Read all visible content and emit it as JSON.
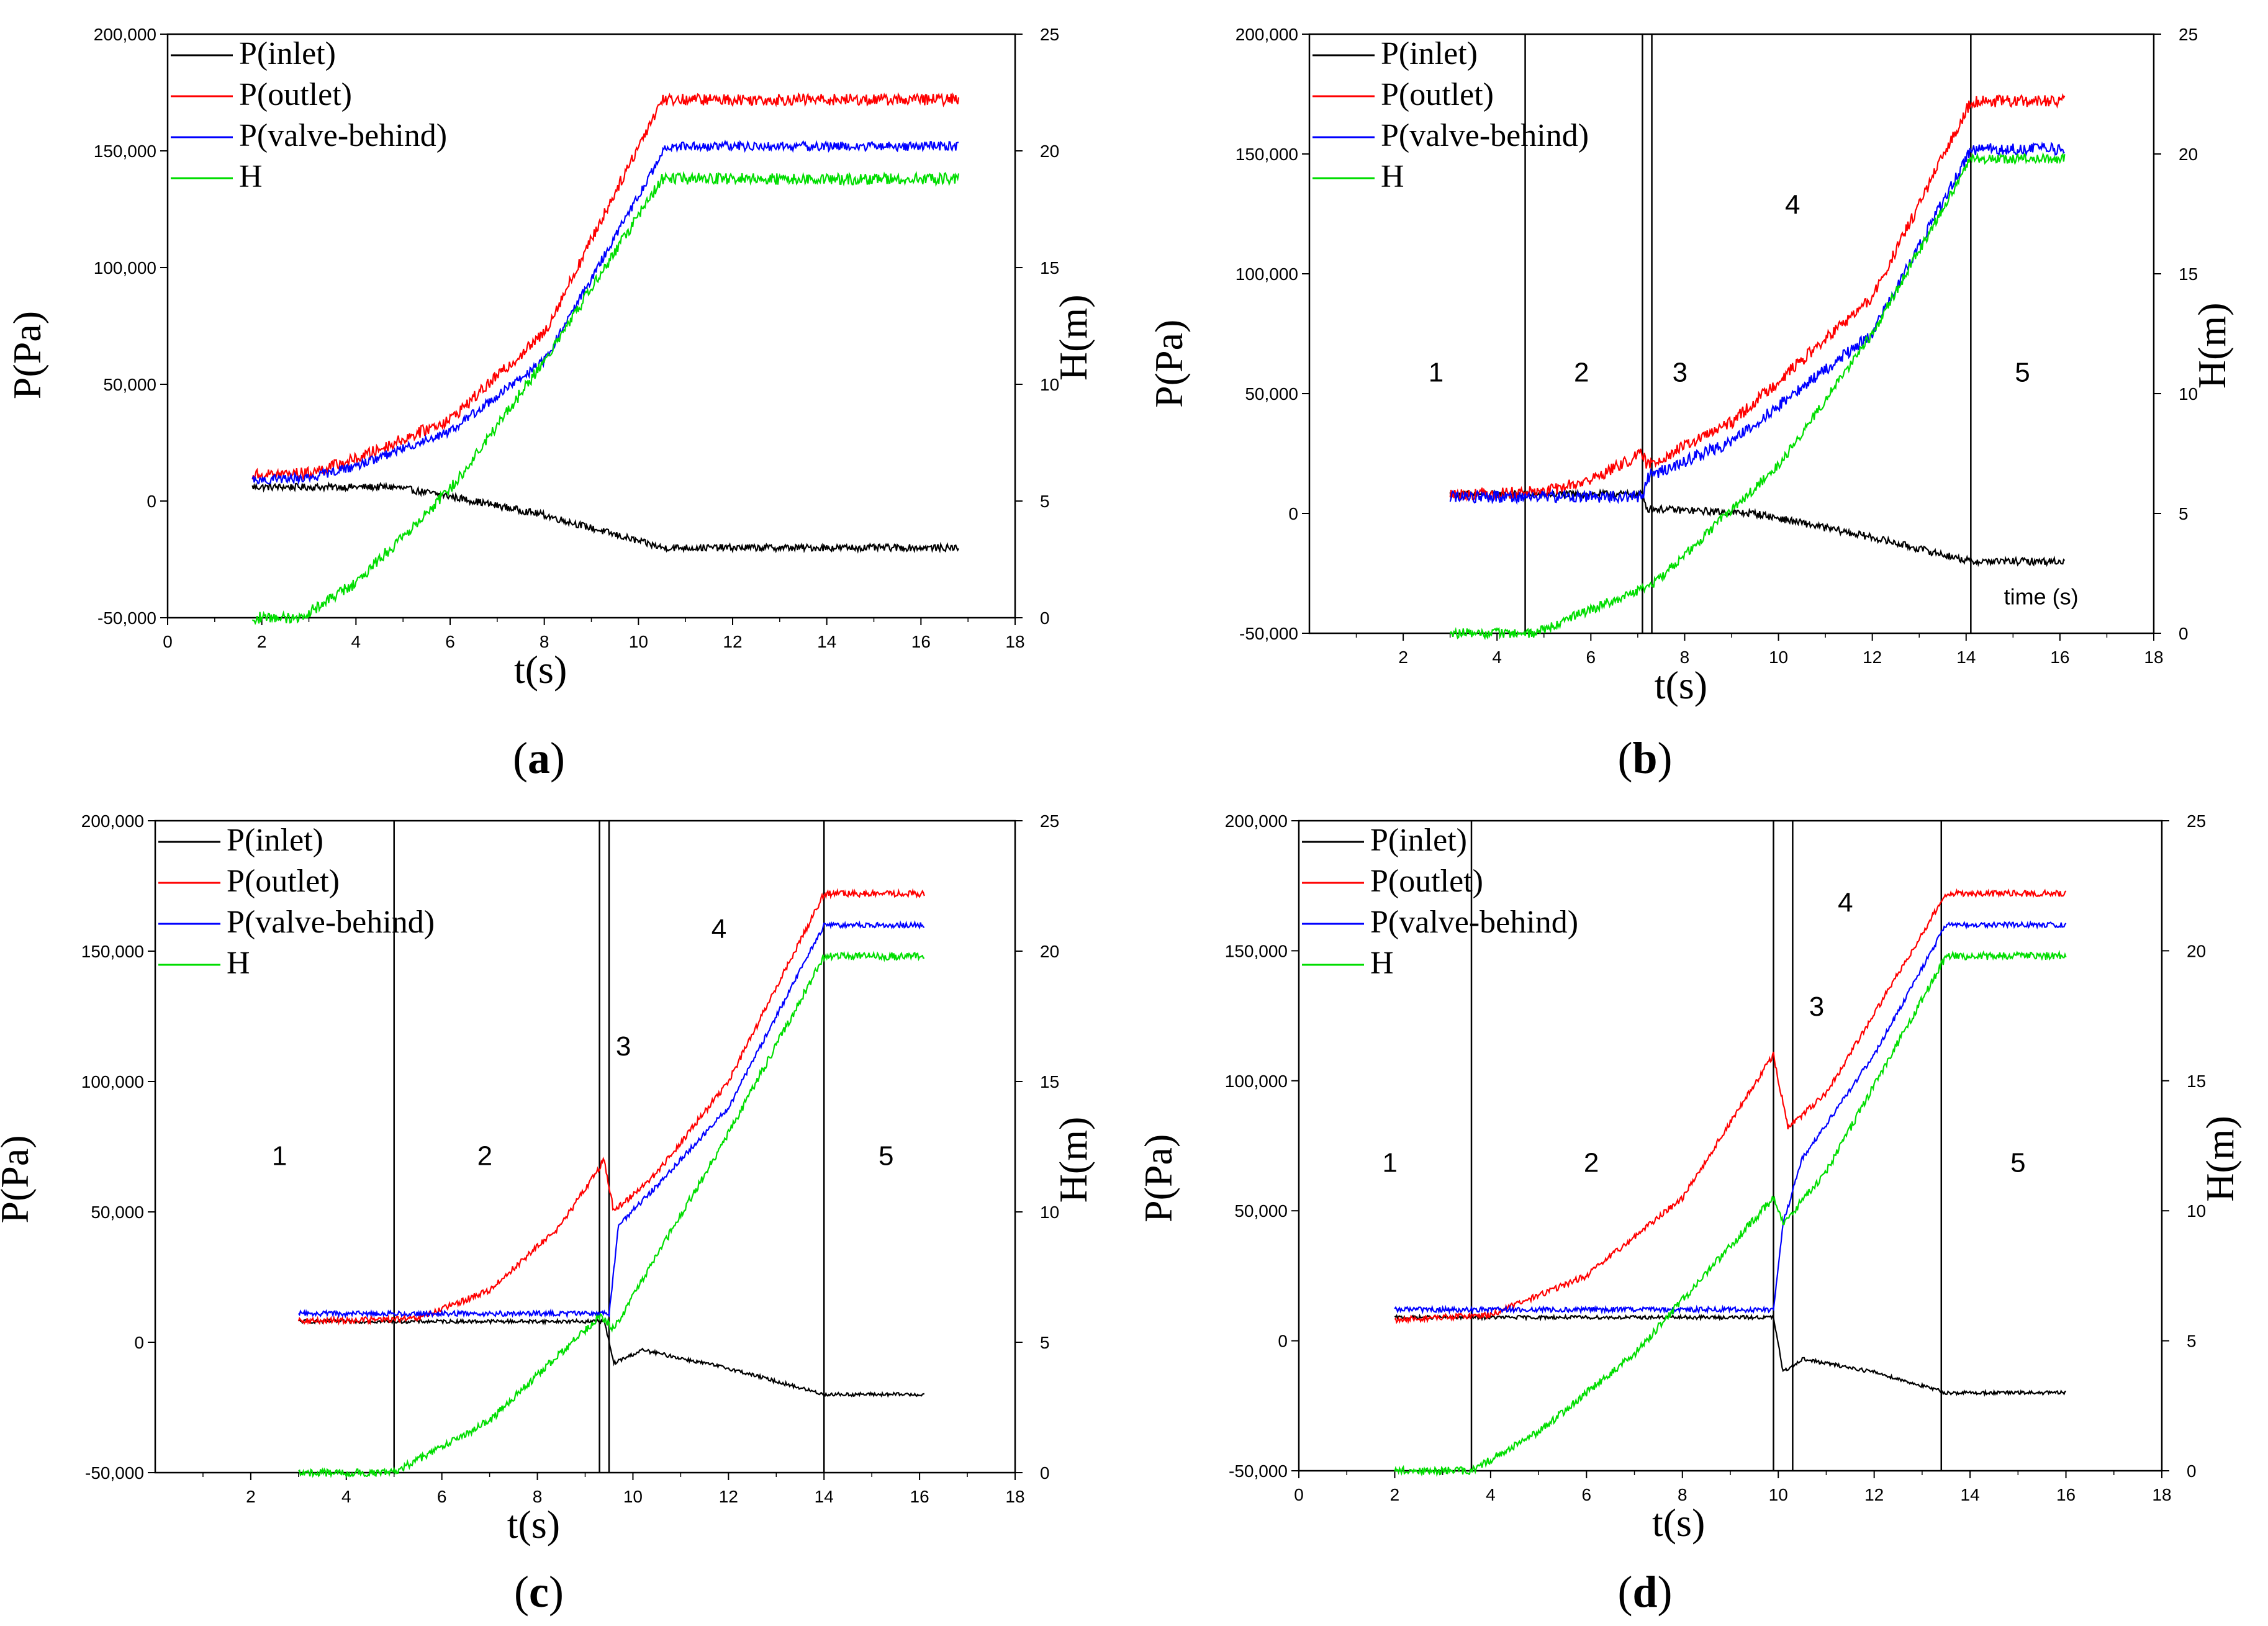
{
  "figure": {
    "panels": [
      {
        "id": "a",
        "caption_open": "(",
        "caption_letter": "a",
        "caption_close": ")"
      },
      {
        "id": "b",
        "caption_open": "(",
        "caption_letter": "b",
        "caption_close": ")"
      },
      {
        "id": "c",
        "caption_open": "(",
        "caption_letter": "c",
        "caption_close": ")"
      },
      {
        "id": "d",
        "caption_open": "(",
        "caption_letter": "d",
        "caption_close": ")"
      }
    ]
  },
  "colors": {
    "inlet": "#000000",
    "outlet": "#ff0000",
    "valve": "#0000ff",
    "head": "#00dd00",
    "zone_line": "#000000"
  },
  "chart_data": [
    {
      "type": "line",
      "panel": "a",
      "xlabel": "t(s)",
      "ylabel": "P(Pa)",
      "y2label": "H(m)",
      "xlim": [
        0,
        18
      ],
      "ylim": [
        -50000,
        200000
      ],
      "y2lim": [
        0,
        25
      ],
      "xticks": [
        "0",
        "2",
        "4",
        "6",
        "8",
        "10",
        "12",
        "14",
        "16",
        "18"
      ],
      "yticks": [
        "-50,000",
        "0",
        "50,000",
        "100,000",
        "150,000",
        "200,000"
      ],
      "y2ticks": [
        "0",
        "5",
        "10",
        "15",
        "20",
        "25"
      ],
      "legend": [
        "P(inlet)",
        "P(outlet)",
        "P(valve-behind)",
        "H"
      ],
      "series": [
        {
          "name": "P(inlet)",
          "axis": "left",
          "noise": 1500,
          "points": [
            [
              1.8,
              6000
            ],
            [
              4.8,
              6000
            ],
            [
              6,
              2000
            ],
            [
              8,
              -6000
            ],
            [
              10.5,
              -20000
            ],
            [
              16.8,
              -20000
            ]
          ]
        },
        {
          "name": "P(outlet)",
          "axis": "left",
          "noise": 2500,
          "points": [
            [
              1.8,
              11000
            ],
            [
              3,
              12000
            ],
            [
              4,
              18000
            ],
            [
              6,
              35000
            ],
            [
              8,
              72000
            ],
            [
              10.5,
              172000
            ],
            [
              16.8,
              172000
            ]
          ]
        },
        {
          "name": "P(valve-behind)",
          "axis": "left",
          "noise": 2000,
          "points": [
            [
              1.8,
              9000
            ],
            [
              3,
              10000
            ],
            [
              4,
              15000
            ],
            [
              6,
              30000
            ],
            [
              8,
              60000
            ],
            [
              10.6,
              152000
            ],
            [
              16.8,
              152000
            ]
          ]
        },
        {
          "name": "H",
          "axis": "right",
          "noise": 0.25,
          "points": [
            [
              1.8,
              0
            ],
            [
              2.8,
              0
            ],
            [
              4,
              1.5
            ],
            [
              6,
              5.5
            ],
            [
              8,
              11
            ],
            [
              10.5,
              18.8
            ],
            [
              16.8,
              18.8
            ]
          ]
        }
      ],
      "zones": [],
      "zone_labels": [],
      "annotations": []
    },
    {
      "type": "line",
      "panel": "b",
      "xlabel": "t(s)",
      "ylabel": "P(Pa)",
      "y2label": "H(m)",
      "xlim": [
        0,
        18
      ],
      "ylim": [
        -50000,
        200000
      ],
      "y2lim": [
        0,
        25
      ],
      "xticks": [
        "2",
        "4",
        "6",
        "8",
        "10",
        "12",
        "14",
        "16",
        "18"
      ],
      "yticks": [
        "-50,000",
        "0",
        "50,000",
        "100,000",
        "150,000",
        "200,000"
      ],
      "y2ticks": [
        "0",
        "5",
        "10",
        "15",
        "20",
        "25"
      ],
      "legend": [
        "P(inlet)",
        "P(outlet)",
        "P(valve-behind)",
        "H"
      ],
      "series": [
        {
          "name": "P(inlet)",
          "axis": "left",
          "noise": 1500,
          "points": [
            [
              3,
              8000
            ],
            [
              7.1,
              8000
            ],
            [
              7.2,
              2000
            ],
            [
              9.5,
              0
            ],
            [
              12,
              -10000
            ],
            [
              14.1,
              -20000
            ],
            [
              16.1,
              -20000
            ]
          ]
        },
        {
          "name": "P(outlet)",
          "axis": "left",
          "noise": 2500,
          "points": [
            [
              3,
              8000
            ],
            [
              5,
              9000
            ],
            [
              6,
              14000
            ],
            [
              7.1,
              25000
            ],
            [
              7.2,
              20000
            ],
            [
              9,
              38000
            ],
            [
              12,
              90000
            ],
            [
              14.1,
              172000
            ],
            [
              16.1,
              172000
            ]
          ]
        },
        {
          "name": "P(valve-behind)",
          "axis": "left",
          "noise": 2500,
          "points": [
            [
              3,
              7000
            ],
            [
              7.1,
              7000
            ],
            [
              7.2,
              15000
            ],
            [
              9,
              30000
            ],
            [
              12,
              75000
            ],
            [
              14.1,
              152000
            ],
            [
              16.1,
              152000
            ]
          ]
        },
        {
          "name": "H",
          "axis": "right",
          "noise": 0.2,
          "points": [
            [
              3,
              0
            ],
            [
              4.8,
              0
            ],
            [
              6,
              1
            ],
            [
              7.3,
              2
            ],
            [
              10,
              7
            ],
            [
              12,
              12.5
            ],
            [
              14.1,
              19.8
            ],
            [
              16.1,
              19.8
            ]
          ]
        }
      ],
      "zones": [
        4.6,
        7.1,
        7.3,
        14.1
      ],
      "zone_labels": [
        {
          "text": "1",
          "x": 2.7,
          "y": 55000
        },
        {
          "text": "2",
          "x": 5.8,
          "y": 55000
        },
        {
          "text": "3",
          "x": 7.9,
          "y": 55000
        },
        {
          "text": "4",
          "x": 10.3,
          "y": 125000
        },
        {
          "text": "5",
          "x": 15.2,
          "y": 55000
        }
      ],
      "annotations": [
        {
          "text": "time (s)",
          "x": 15.6,
          "y": -38000
        }
      ]
    },
    {
      "type": "line",
      "panel": "c",
      "xlabel": "t(s)",
      "ylabel": "P(Pa)",
      "y2label": "H(m)",
      "xlim": [
        0,
        18
      ],
      "ylim": [
        -50000,
        200000
      ],
      "y2lim": [
        0,
        25
      ],
      "xticks": [
        "2",
        "4",
        "6",
        "8",
        "10",
        "12",
        "14",
        "16",
        "18"
      ],
      "yticks": [
        "-50,000",
        "0",
        "50,000",
        "100,000",
        "150,000",
        "200,000"
      ],
      "y2ticks": [
        "0",
        "5",
        "10",
        "15",
        "20",
        "25"
      ],
      "legend": [
        "P(inlet)",
        "P(outlet)",
        "P(valve-behind)",
        "H"
      ],
      "series": [
        {
          "name": "P(inlet)",
          "axis": "left",
          "noise": 700,
          "points": [
            [
              3,
              8000
            ],
            [
              9.4,
              8000
            ],
            [
              9.6,
              -8000
            ],
            [
              10.2,
              -3000
            ],
            [
              12,
              -10000
            ],
            [
              14,
              -20000
            ],
            [
              16.1,
              -20000
            ]
          ]
        },
        {
          "name": "P(outlet)",
          "axis": "left",
          "noise": 1200,
          "points": [
            [
              3,
              8000
            ],
            [
              5.5,
              9000
            ],
            [
              7,
              20000
            ],
            [
              8.5,
              45000
            ],
            [
              9.4,
              70000
            ],
            [
              9.6,
              50000
            ],
            [
              10.5,
              65000
            ],
            [
              12,
              100000
            ],
            [
              14,
              172000
            ],
            [
              16.1,
              172000
            ]
          ]
        },
        {
          "name": "P(valve-behind)",
          "axis": "left",
          "noise": 1000,
          "points": [
            [
              3,
              11000
            ],
            [
              9.5,
              11000
            ],
            [
              9.7,
              45000
            ],
            [
              10.5,
              60000
            ],
            [
              12,
              90000
            ],
            [
              14,
              160000
            ],
            [
              16.1,
              160000
            ]
          ]
        },
        {
          "name": "H",
          "axis": "right",
          "noise": 0.15,
          "points": [
            [
              3,
              0
            ],
            [
              5,
              0
            ],
            [
              7,
              2
            ],
            [
              9.3,
              6
            ],
            [
              9.6,
              5.5
            ],
            [
              12,
              13
            ],
            [
              14,
              19.8
            ],
            [
              16.1,
              19.8
            ]
          ]
        }
      ],
      "zones": [
        5,
        9.3,
        9.5,
        14
      ],
      "zone_labels": [
        {
          "text": "1",
          "x": 2.6,
          "y": 68000
        },
        {
          "text": "2",
          "x": 6.9,
          "y": 68000
        },
        {
          "text": "3",
          "x": 9.8,
          "y": 110000
        },
        {
          "text": "4",
          "x": 11.8,
          "y": 155000
        },
        {
          "text": "5",
          "x": 15.3,
          "y": 68000
        }
      ],
      "annotations": []
    },
    {
      "type": "line",
      "panel": "d",
      "xlabel": "t(s)",
      "ylabel": "P(Pa)",
      "y2label": "H(m)",
      "xlim": [
        0,
        18
      ],
      "ylim": [
        -50000,
        200000
      ],
      "y2lim": [
        0,
        25
      ],
      "xticks": [
        "0",
        "2",
        "4",
        "6",
        "8",
        "10",
        "12",
        "14",
        "16",
        "18"
      ],
      "yticks": [
        "-50,000",
        "0",
        "50,000",
        "100,000",
        "150,000",
        "200,000"
      ],
      "y2ticks": [
        "0",
        "5",
        "10",
        "15",
        "20",
        "25"
      ],
      "legend": [
        "P(inlet)",
        "P(outlet)",
        "P(valve-behind)",
        "H"
      ],
      "series": [
        {
          "name": "P(inlet)",
          "axis": "left",
          "noise": 700,
          "points": [
            [
              2,
              9000
            ],
            [
              9.9,
              9000
            ],
            [
              10.1,
              -12000
            ],
            [
              10.5,
              -7000
            ],
            [
              12,
              -12000
            ],
            [
              13.5,
              -20000
            ],
            [
              16,
              -20000
            ]
          ]
        },
        {
          "name": "P(outlet)",
          "axis": "left",
          "noise": 1200,
          "points": [
            [
              2,
              8000
            ],
            [
              4,
              10000
            ],
            [
              6,
              25000
            ],
            [
              8,
              55000
            ],
            [
              9.9,
              110000
            ],
            [
              10.2,
              82000
            ],
            [
              11,
              95000
            ],
            [
              13.5,
              172000
            ],
            [
              16,
              172000
            ]
          ]
        },
        {
          "name": "P(valve-behind)",
          "axis": "left",
          "noise": 1000,
          "points": [
            [
              2,
              12000
            ],
            [
              9.9,
              12000
            ],
            [
              10.1,
              45000
            ],
            [
              10.5,
              70000
            ],
            [
              12,
              110000
            ],
            [
              13.5,
              160000
            ],
            [
              16,
              160000
            ]
          ]
        },
        {
          "name": "H",
          "axis": "right",
          "noise": 0.15,
          "points": [
            [
              2,
              0
            ],
            [
              3.6,
              0
            ],
            [
              5,
              1.5
            ],
            [
              7,
              4.5
            ],
            [
              9.9,
              10.5
            ],
            [
              10.1,
              9.5
            ],
            [
              11,
              11.5
            ],
            [
              13.5,
              19.8
            ],
            [
              16,
              19.8
            ]
          ]
        }
      ],
      "zones": [
        3.6,
        9.9,
        10.3,
        13.4
      ],
      "zone_labels": [
        {
          "text": "1",
          "x": 1.9,
          "y": 65000
        },
        {
          "text": "2",
          "x": 6.1,
          "y": 65000
        },
        {
          "text": "3",
          "x": 10.8,
          "y": 125000
        },
        {
          "text": "4",
          "x": 11.4,
          "y": 165000
        },
        {
          "text": "5",
          "x": 15,
          "y": 65000
        }
      ],
      "annotations": []
    }
  ]
}
